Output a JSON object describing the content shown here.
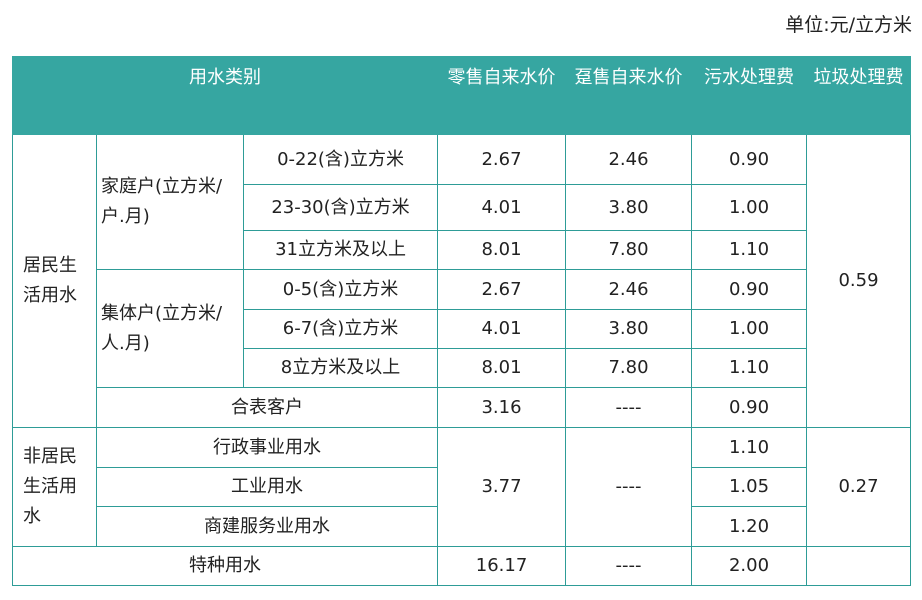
{
  "unit_label": "单位:元/立方米",
  "header": {
    "category": "用水类别",
    "retail": "零售自来水价",
    "wholesale": "趸售自来水价",
    "sewage": "污水处理费",
    "garbage": "垃圾处理费"
  },
  "residential": {
    "label": "居民生活用水",
    "household": {
      "label": "家庭户(立方米/户.月)",
      "tiers": [
        {
          "range": "0-22(含)立方米",
          "retail": "2.67",
          "wholesale": "2.46",
          "sewage": "0.90"
        },
        {
          "range": "23-30(含)立方米",
          "retail": "4.01",
          "wholesale": "3.80",
          "sewage": "1.00"
        },
        {
          "range": "31立方米及以上",
          "retail": "8.01",
          "wholesale": "7.80",
          "sewage": "1.10"
        }
      ]
    },
    "collective": {
      "label": "集体户(立方米/人.月)",
      "tiers": [
        {
          "range": "0-5(含)立方米",
          "retail": "2.67",
          "wholesale": "2.46",
          "sewage": "0.90"
        },
        {
          "range": "6-7(含)立方米",
          "retail": "4.01",
          "wholesale": "3.80",
          "sewage": "1.00"
        },
        {
          "range": "8立方米及以上",
          "retail": "8.01",
          "wholesale": "7.80",
          "sewage": "1.10"
        }
      ]
    },
    "shared_meter": {
      "label": "合表客户",
      "retail": "3.16",
      "wholesale": "----",
      "sewage": "0.90"
    },
    "garbage": "0.59"
  },
  "non_residential": {
    "label": "非居民生活用水",
    "retail": "3.77",
    "wholesale": "----",
    "garbage": "0.27",
    "rows": [
      {
        "label": "行政事业用水",
        "sewage": "1.10"
      },
      {
        "label": "工业用水",
        "sewage": "1.05"
      },
      {
        "label": "商建服务业用水",
        "sewage": "1.20"
      }
    ]
  },
  "special": {
    "label": "特种用水",
    "retail": "16.17",
    "wholesale": "----",
    "sewage": "2.00"
  }
}
